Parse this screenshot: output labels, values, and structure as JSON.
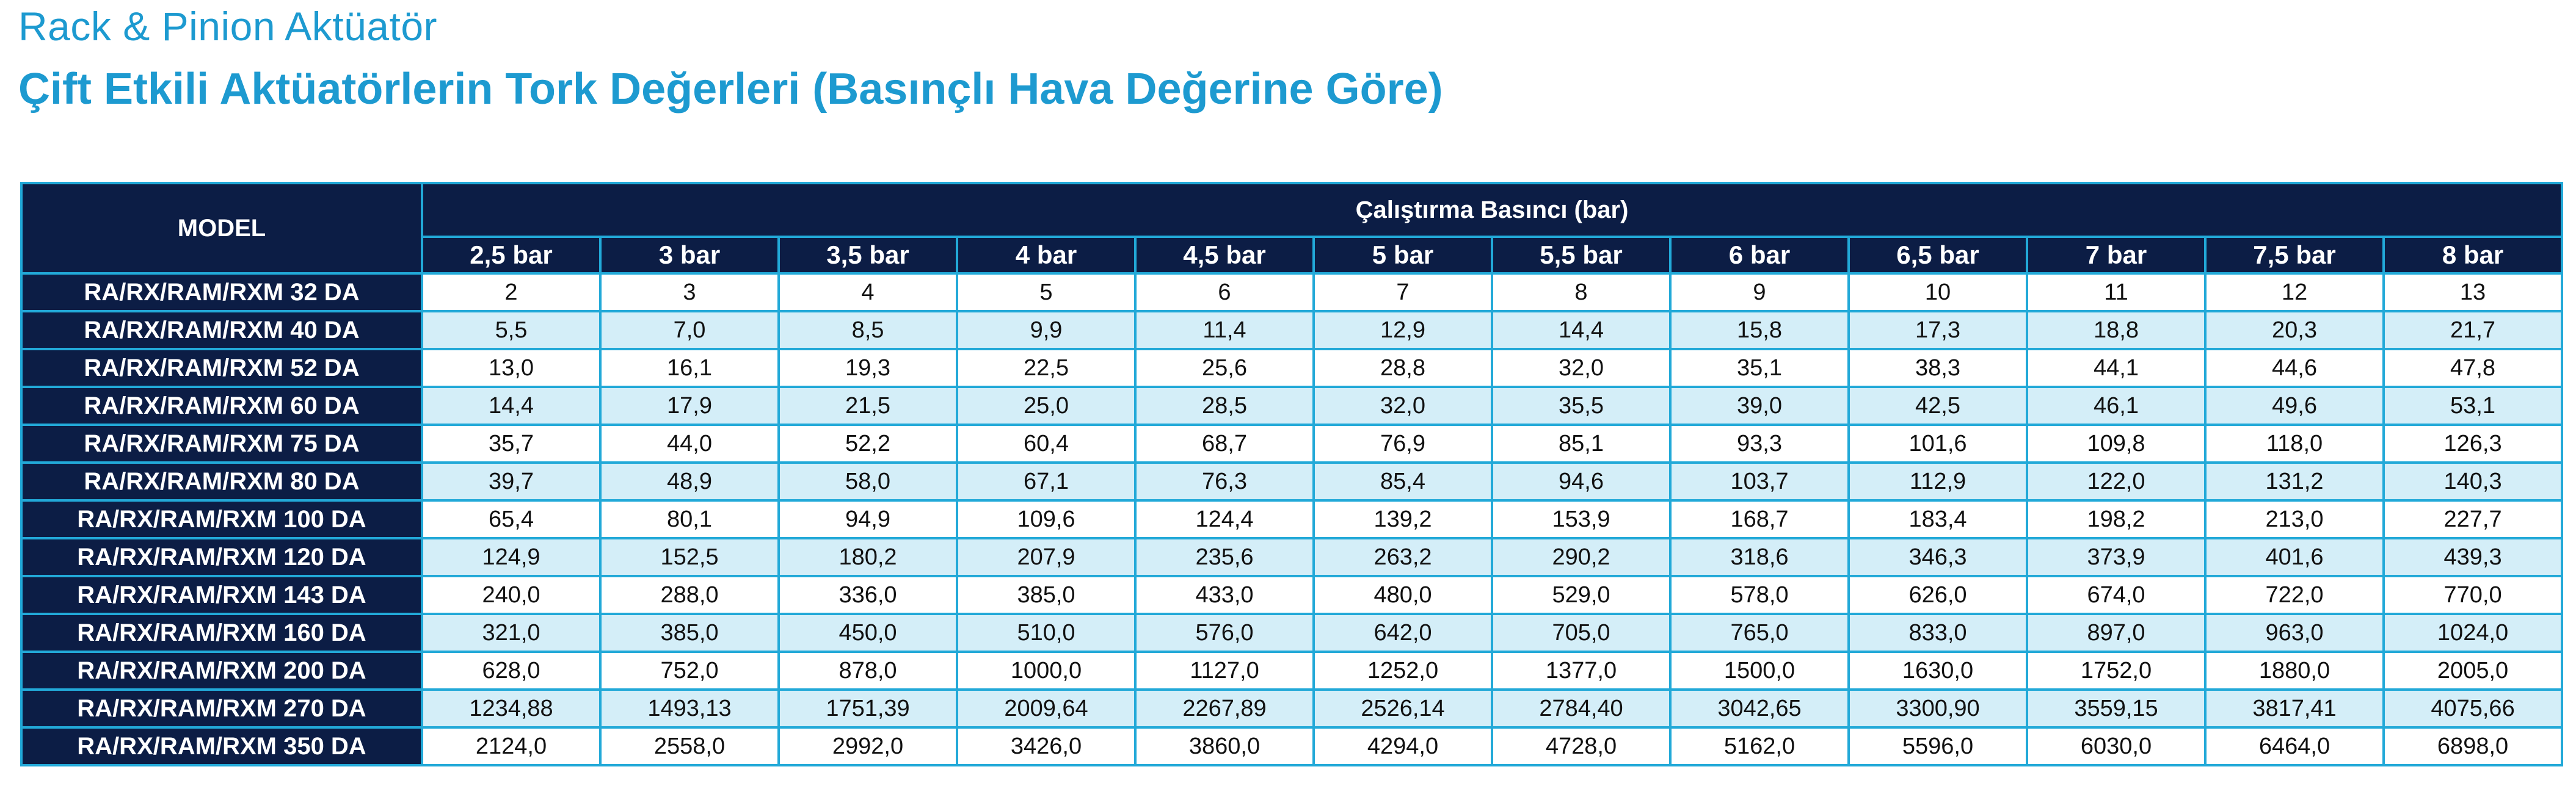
{
  "header": {
    "title": "Rack & Pinion Aktüatör",
    "subtitle": "Çift Etkili Aktüatörlerin Tork Değerleri (Basınçlı Hava Değerine Göre)"
  },
  "table": {
    "model_header": "MODEL",
    "group_header": "Çalıştırma Basıncı (bar)",
    "pressures": [
      "2,5 bar",
      "3 bar",
      "3,5 bar",
      "4 bar",
      "4,5 bar",
      "5 bar",
      "5,5 bar",
      "6 bar",
      "6,5 bar",
      "7 bar",
      "7,5 bar",
      "8 bar"
    ],
    "rows": [
      {
        "model": "RA/RX/RAM/RXM 32 DA",
        "values": [
          "2",
          "3",
          "4",
          "5",
          "6",
          "7",
          "8",
          "9",
          "10",
          "11",
          "12",
          "13"
        ]
      },
      {
        "model": "RA/RX/RAM/RXM 40 DA",
        "values": [
          "5,5",
          "7,0",
          "8,5",
          "9,9",
          "11,4",
          "12,9",
          "14,4",
          "15,8",
          "17,3",
          "18,8",
          "20,3",
          "21,7"
        ]
      },
      {
        "model": "RA/RX/RAM/RXM 52 DA",
        "values": [
          "13,0",
          "16,1",
          "19,3",
          "22,5",
          "25,6",
          "28,8",
          "32,0",
          "35,1",
          "38,3",
          "44,1",
          "44,6",
          "47,8"
        ]
      },
      {
        "model": "RA/RX/RAM/RXM 60 DA",
        "values": [
          "14,4",
          "17,9",
          "21,5",
          "25,0",
          "28,5",
          "32,0",
          "35,5",
          "39,0",
          "42,5",
          "46,1",
          "49,6",
          "53,1"
        ]
      },
      {
        "model": "RA/RX/RAM/RXM 75 DA",
        "values": [
          "35,7",
          "44,0",
          "52,2",
          "60,4",
          "68,7",
          "76,9",
          "85,1",
          "93,3",
          "101,6",
          "109,8",
          "118,0",
          "126,3"
        ]
      },
      {
        "model": "RA/RX/RAM/RXM 80 DA",
        "values": [
          "39,7",
          "48,9",
          "58,0",
          "67,1",
          "76,3",
          "85,4",
          "94,6",
          "103,7",
          "112,9",
          "122,0",
          "131,2",
          "140,3"
        ]
      },
      {
        "model": "RA/RX/RAM/RXM 100 DA",
        "values": [
          "65,4",
          "80,1",
          "94,9",
          "109,6",
          "124,4",
          "139,2",
          "153,9",
          "168,7",
          "183,4",
          "198,2",
          "213,0",
          "227,7"
        ]
      },
      {
        "model": "RA/RX/RAM/RXM 120 DA",
        "values": [
          "124,9",
          "152,5",
          "180,2",
          "207,9",
          "235,6",
          "263,2",
          "290,2",
          "318,6",
          "346,3",
          "373,9",
          "401,6",
          "439,3"
        ]
      },
      {
        "model": "RA/RX/RAM/RXM 143 DA",
        "values": [
          "240,0",
          "288,0",
          "336,0",
          "385,0",
          "433,0",
          "480,0",
          "529,0",
          "578,0",
          "626,0",
          "674,0",
          "722,0",
          "770,0"
        ]
      },
      {
        "model": "RA/RX/RAM/RXM 160 DA",
        "values": [
          "321,0",
          "385,0",
          "450,0",
          "510,0",
          "576,0",
          "642,0",
          "705,0",
          "765,0",
          "833,0",
          "897,0",
          "963,0",
          "1024,0"
        ]
      },
      {
        "model": "RA/RX/RAM/RXM 200 DA",
        "values": [
          "628,0",
          "752,0",
          "878,0",
          "1000,0",
          "1127,0",
          "1252,0",
          "1377,0",
          "1500,0",
          "1630,0",
          "1752,0",
          "1880,0",
          "2005,0"
        ]
      },
      {
        "model": "RA/RX/RAM/RXM 270 DA",
        "values": [
          "1234,88",
          "1493,13",
          "1751,39",
          "2009,64",
          "2267,89",
          "2526,14",
          "2784,40",
          "3042,65",
          "3300,90",
          "3559,15",
          "3817,41",
          "4075,66"
        ]
      },
      {
        "model": "RA/RX/RAM/RXM 350 DA",
        "values": [
          "2124,0",
          "2558,0",
          "2992,0",
          "3426,0",
          "3860,0",
          "4294,0",
          "4728,0",
          "5162,0",
          "5596,0",
          "6030,0",
          "6464,0",
          "6898,0"
        ]
      }
    ]
  },
  "colors": {
    "title": "#1d9ad0",
    "header_bg": "#0c1d45",
    "border": "#22a9d8",
    "row_alt": "#d4eef8"
  }
}
